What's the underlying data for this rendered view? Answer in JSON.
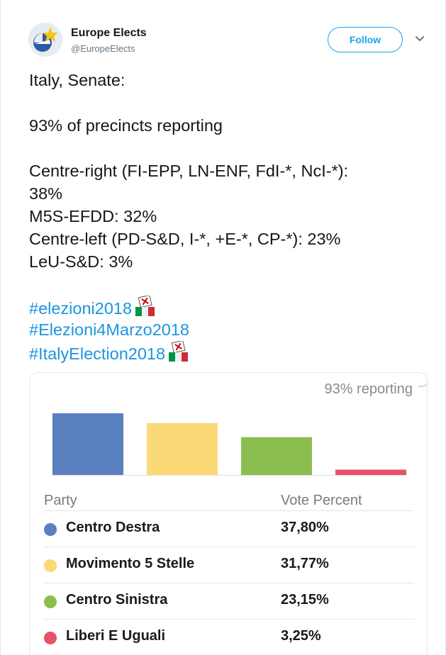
{
  "account": {
    "name": "Europe Elects",
    "handle": "@EuropeElects",
    "follow_label": "Follow",
    "avatar_icon": "europe-elects-logo",
    "menu_icon": "chevron-down-icon"
  },
  "tweet": {
    "title": "Italy, Senate:",
    "reporting": "93% of precincts reporting",
    "results": [
      "Centre-right (FI-EPP, LN-ENF, FdI-*, NcI-*):",
      "38%",
      "M5S-EFDD: 32%",
      "Centre-left (PD-S&D, I-*, +E-*, CP-*): 23%",
      "LeU-S&D: 3%"
    ],
    "hashtags": [
      "#elezioni2018",
      "#Elezioni4Marzo2018",
      "#ItalyElection2018"
    ],
    "hashtag_color": "#1b95e0"
  },
  "embed": {
    "reporting_label": "93% reporting",
    "table": {
      "headers": {
        "party": "Party",
        "vote": "Vote Percent"
      },
      "rows": [
        {
          "party": "Centro Destra",
          "vote": "37,80%",
          "color": "#5b80c0"
        },
        {
          "party": "Movimento 5 Stelle",
          "vote": "31,77%",
          "color": "#fbd976"
        },
        {
          "party": "Centro Sinistra",
          "vote": "23,15%",
          "color": "#8bbe4f"
        },
        {
          "party": "Liberi E Uguali",
          "vote": "3,25%",
          "color": "#e9506a"
        }
      ]
    }
  },
  "chart_data": {
    "type": "bar",
    "categories": [
      "Centro Destra",
      "Movimento 5 Stelle",
      "Centro Sinistra",
      "Liberi E Uguali"
    ],
    "values": [
      37.8,
      31.77,
      23.15,
      3.25
    ],
    "colors": [
      "#5b80c0",
      "#fbd976",
      "#8bbe4f",
      "#e9506a"
    ],
    "title": "",
    "xlabel": "",
    "ylabel": "",
    "ylim": [
      0,
      37.8
    ],
    "grid": false
  }
}
